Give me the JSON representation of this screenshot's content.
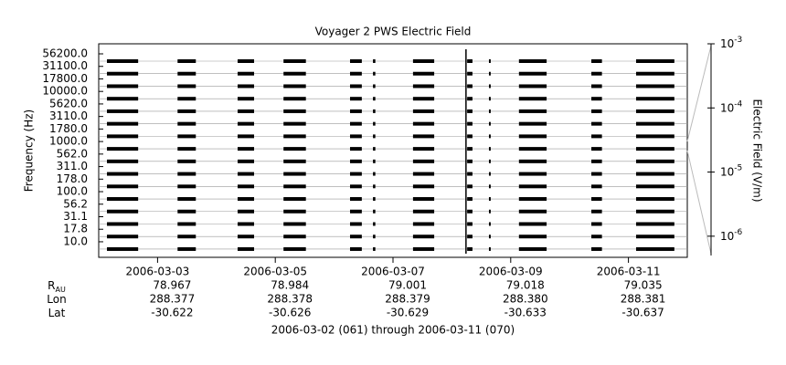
{
  "chart_data": {
    "type": "spectrogram",
    "title": "Voyager 2 PWS Electric Field",
    "y_label": "Frequency (Hz)",
    "y2_label": "Electric Field (V/m)",
    "categories": [
      "56200.0",
      "31100.0",
      "17800.0",
      "10000.0",
      "5620.0",
      "3110.0",
      "1780.0",
      "1000.0",
      "562.0",
      "311.0",
      "178.0",
      "100.0",
      "56.2",
      "31.1",
      "17.8",
      "10.0"
    ],
    "color": "#000000",
    "xlim": [
      61,
      71
    ],
    "xticks": [
      {
        "value": 62,
        "label": "2006-03-03"
      },
      {
        "value": 64,
        "label": "2006-03-05"
      },
      {
        "value": 66,
        "label": "2006-03-07"
      },
      {
        "value": 68,
        "label": "2006-03-09"
      },
      {
        "value": 70,
        "label": "2006-03-11"
      }
    ],
    "intervals": [
      [
        61.14,
        61.67
      ],
      [
        62.34,
        62.65
      ],
      [
        63.36,
        63.64
      ],
      [
        64.14,
        64.52
      ],
      [
        65.27,
        65.47
      ],
      [
        65.66,
        65.7
      ],
      [
        66.34,
        66.7
      ],
      [
        67.26,
        67.35
      ],
      [
        67.63,
        67.66
      ],
      [
        68.14,
        68.61
      ],
      [
        69.37,
        69.55
      ],
      [
        70.13,
        70.78
      ]
    ],
    "event_lines": [
      67.24
    ],
    "y2_log": true,
    "y2lim": [
      5e-07,
      0.001
    ],
    "y2ticks": [
      {
        "value": 0.001,
        "label": "10",
        "exponent": "-3"
      },
      {
        "value": 0.0001,
        "label": "10",
        "exponent": "-4"
      },
      {
        "value": 1e-05,
        "label": "10",
        "exponent": "-5"
      },
      {
        "value": 1e-06,
        "label": "10",
        "exponent": "-6"
      }
    ],
    "ephemeris": [
      {
        "name": "R",
        "sub": "AU",
        "values": [
          "78.967",
          "78.984",
          "79.001",
          "79.018",
          "79.035"
        ]
      },
      {
        "name": "Lon",
        "values": [
          "288.377",
          "288.378",
          "288.379",
          "288.380",
          "288.381"
        ]
      },
      {
        "name": "Lat",
        "values": [
          "-30.622",
          "-30.626",
          "-30.629",
          "-30.633",
          "-30.637"
        ]
      }
    ],
    "footer": "2006-03-02 (061) through 2006-03-11 (070)"
  }
}
